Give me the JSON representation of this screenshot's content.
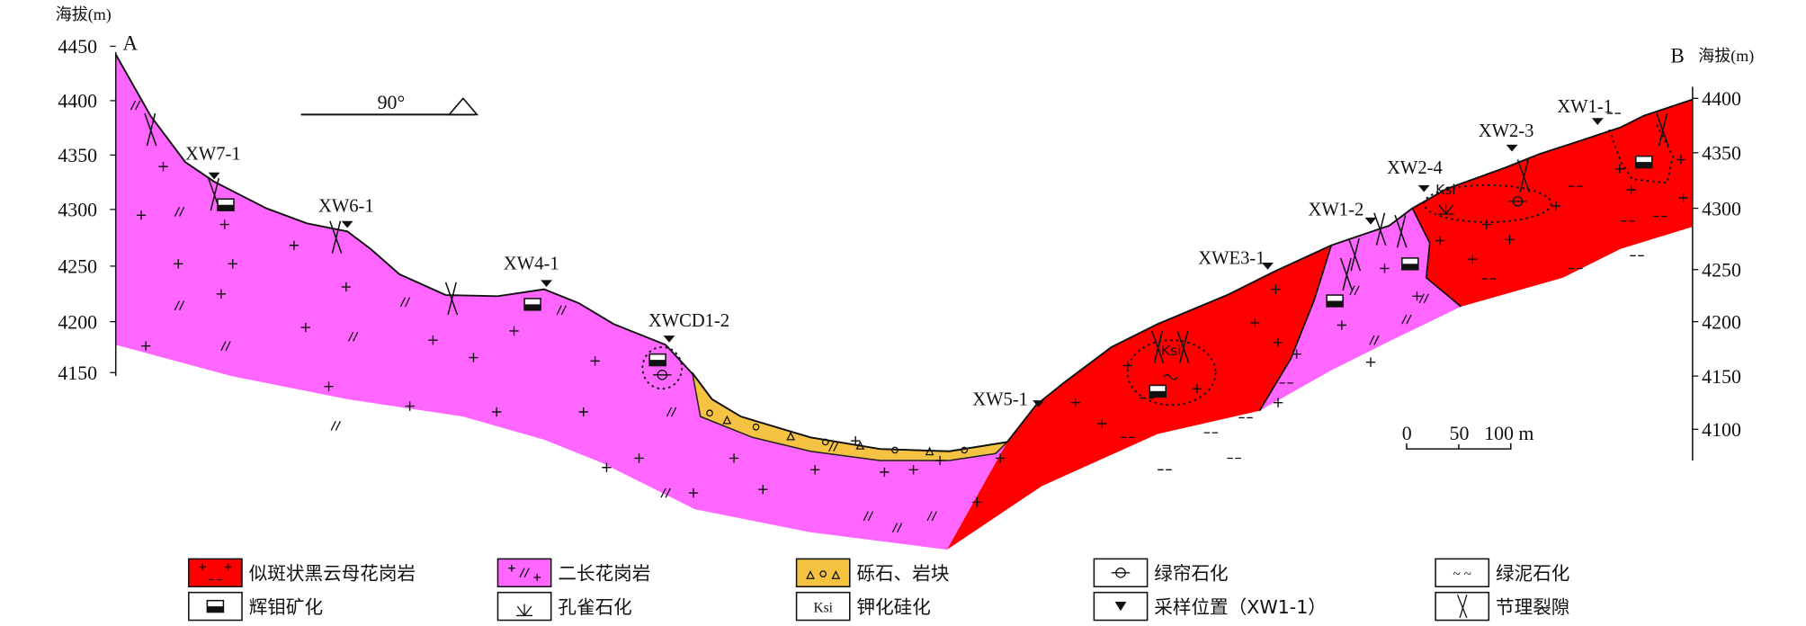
{
  "axis_left": {
    "title": "海拔(m)",
    "end_label": "A",
    "ticks": [
      "4450",
      "4400",
      "4350",
      "4300",
      "4250",
      "4200",
      "4150"
    ]
  },
  "axis_right": {
    "title": "海拔(m)",
    "end_label": "B",
    "ticks": [
      "4400",
      "4350",
      "4300",
      "4250",
      "4200",
      "4150",
      "4100"
    ]
  },
  "orientation": {
    "label": "90°"
  },
  "samples": [
    "XW7-1",
    "XW6-1",
    "XW4-1",
    "XWCD1-2",
    "XW5-1",
    "XWE3-1",
    "XW1-2",
    "XW2-4",
    "XW2-3",
    "XW1-1"
  ],
  "alteration_labels": {
    "ksi_1": "Ksi",
    "ksi_2": "Ksi"
  },
  "scale_bar": {
    "t0": "0",
    "t50": "50",
    "t100": "100 m"
  },
  "colors": {
    "porphyritic_granite": "#ff0000",
    "monzogranite": "#ff66ff",
    "gravel": "#f5c242"
  },
  "legend": [
    {
      "label": "似斑状黑云母花岗岩",
      "symbol": "porphyritic-granite-swatch"
    },
    {
      "label": "二长花岗岩",
      "symbol": "monzogranite-swatch"
    },
    {
      "label": "砾石、岩块",
      "symbol": "gravel-swatch"
    },
    {
      "label": "绿帘石化",
      "symbol": "epidotization-icon"
    },
    {
      "label": "绿泥石化",
      "symbol": "chloritization-icon",
      "sym_text": "~ ~"
    },
    {
      "label": "辉钼矿化",
      "symbol": "molybdenite-icon"
    },
    {
      "label": "孔雀石化",
      "symbol": "malachite-icon"
    },
    {
      "label": "钾化硅化",
      "symbol": "ksi-icon",
      "sym_text": "Ksi"
    },
    {
      "label": "采样位置（XW1-1）",
      "symbol": "sample-location-icon"
    },
    {
      "label": "节理裂隙",
      "symbol": "joint-fracture-icon"
    }
  ]
}
